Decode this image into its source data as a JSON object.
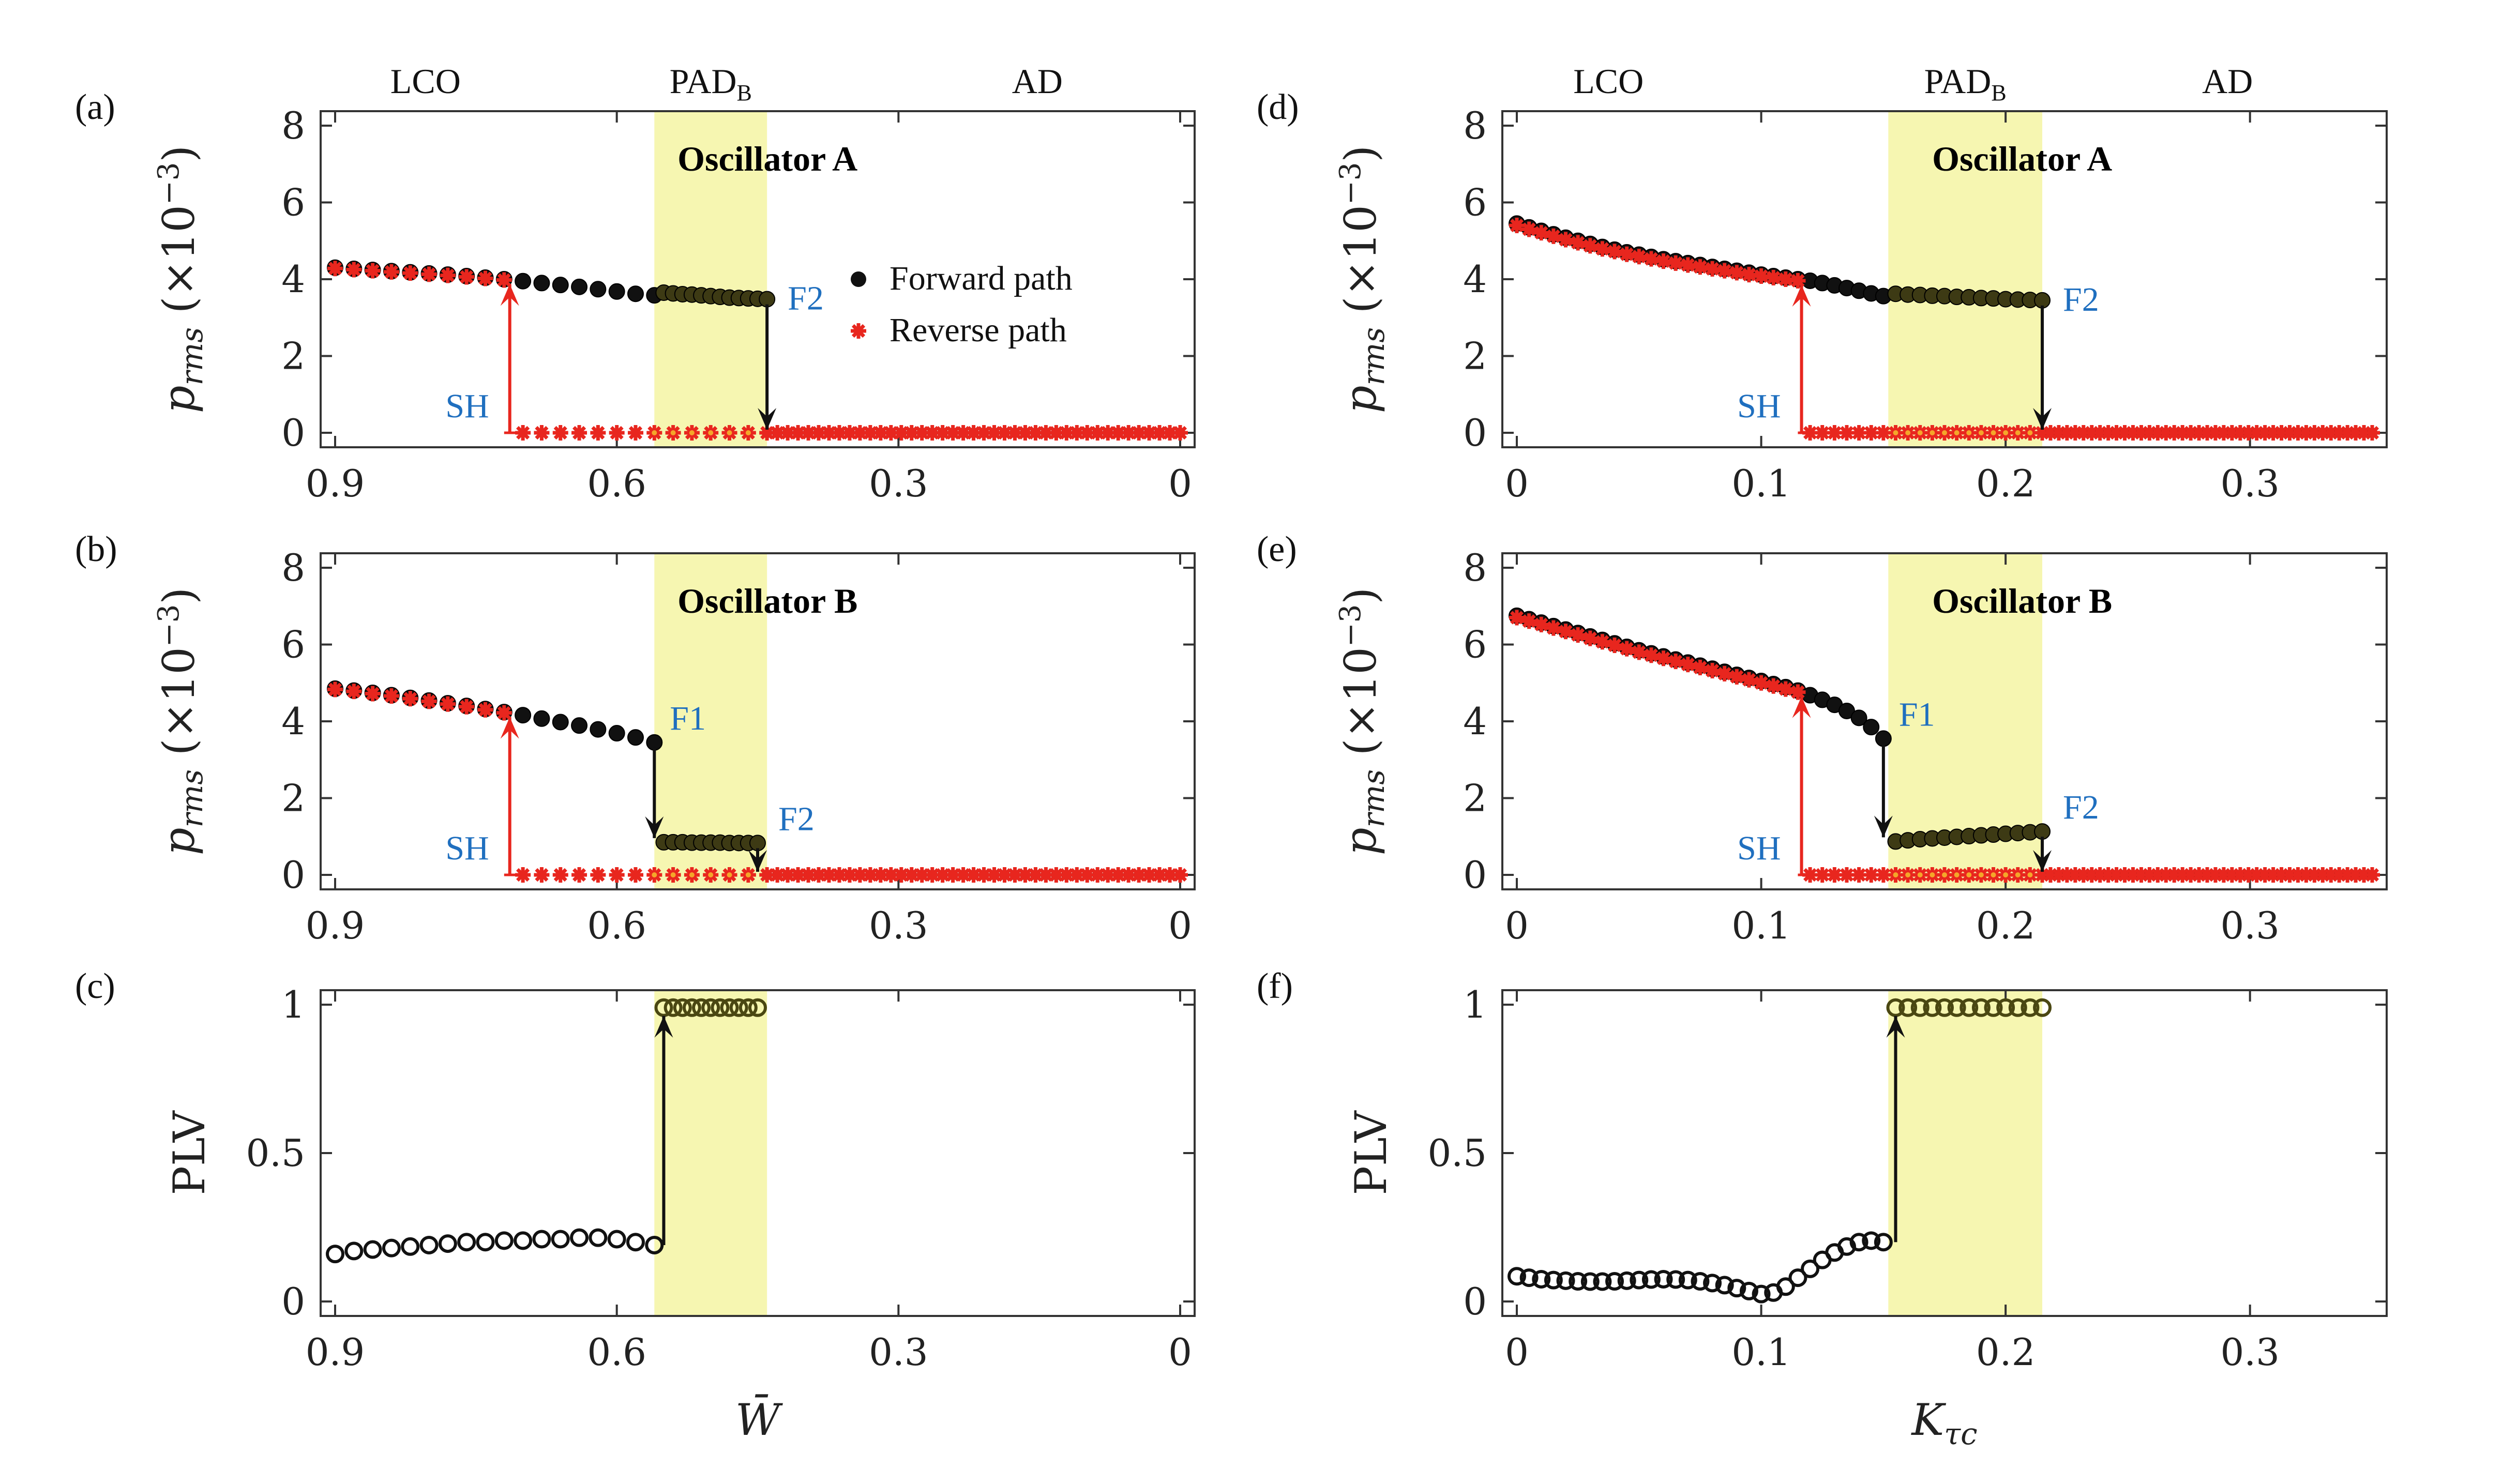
{
  "chart_data": [
    {
      "id": "a",
      "panel_label": "(a)",
      "type": "scatter",
      "title": "Oscillator A",
      "ylabel_main": "p",
      "ylabel_sub": "rms",
      "ylabel_unit": "(×10",
      "ylabel_exp": "−3",
      "ylabel_close": ")",
      "xlim": [
        0.9,
        0
      ],
      "ylim": [
        0,
        8
      ],
      "xticks": [
        "0.9",
        "0.6",
        "0.3",
        "0"
      ],
      "yticks": [
        "0",
        "2",
        "4",
        "6",
        "8"
      ],
      "regions": [
        "LCO",
        "PAD",
        "AD"
      ],
      "region_sub": "B",
      "shaded_band": [
        0.56,
        0.44
      ],
      "series": [
        {
          "name": "Forward path",
          "marker": "dot",
          "x": [
            0.9,
            0.88,
            0.86,
            0.84,
            0.82,
            0.8,
            0.78,
            0.76,
            0.74,
            0.72,
            0.7,
            0.68,
            0.66,
            0.64,
            0.62,
            0.6,
            0.58,
            0.56,
            0.55,
            0.54,
            0.53,
            0.52,
            0.51,
            0.5,
            0.49,
            0.48,
            0.47,
            0.46,
            0.45,
            0.44
          ],
          "y": [
            4.3,
            4.27,
            4.24,
            4.21,
            4.18,
            4.15,
            4.12,
            4.08,
            4.04,
            4.0,
            3.95,
            3.9,
            3.85,
            3.8,
            3.74,
            3.68,
            3.62,
            3.58,
            3.65,
            3.63,
            3.61,
            3.6,
            3.58,
            3.56,
            3.54,
            3.52,
            3.51,
            3.5,
            3.49,
            3.48
          ]
        },
        {
          "name": "Reverse path",
          "marker": "star",
          "x": [
            0.9,
            0.88,
            0.86,
            0.84,
            0.82,
            0.8,
            0.78,
            0.76,
            0.74,
            0.72,
            0.7,
            0.68,
            0.66,
            0.64,
            0.62,
            0.6,
            0.58,
            0.56,
            0.54,
            0.52,
            0.5,
            0.48,
            0.46
          ],
          "y": [
            4.28,
            4.25,
            4.22,
            4.19,
            4.16,
            4.13,
            4.1,
            4.06,
            4.02,
            3.98,
            0,
            0,
            0,
            0,
            0,
            0,
            0,
            0,
            0,
            0,
            0,
            0,
            0
          ]
        }
      ],
      "baseline_x": [
        0.44,
        0
      ],
      "annotations": [
        "SH",
        "F2"
      ],
      "legend": [
        "Forward path",
        "Reverse path"
      ]
    },
    {
      "id": "b",
      "panel_label": "(b)",
      "type": "scatter",
      "title": "Oscillator B",
      "ylabel_main": "p",
      "ylabel_sub": "rms",
      "ylabel_unit": "(×10",
      "ylabel_exp": "−3",
      "ylabel_close": ")",
      "xlim": [
        0.9,
        0
      ],
      "ylim": [
        0,
        8
      ],
      "xticks": [
        "0.9",
        "0.6",
        "0.3",
        "0"
      ],
      "yticks": [
        "0",
        "2",
        "4",
        "6",
        "8"
      ],
      "shaded_band": [
        0.56,
        0.44
      ],
      "series": [
        {
          "name": "Forward path",
          "marker": "dot",
          "x": [
            0.9,
            0.88,
            0.86,
            0.84,
            0.82,
            0.8,
            0.78,
            0.76,
            0.74,
            0.72,
            0.7,
            0.68,
            0.66,
            0.64,
            0.62,
            0.6,
            0.58,
            0.56,
            0.55,
            0.54,
            0.53,
            0.52,
            0.51,
            0.5,
            0.49,
            0.48,
            0.47,
            0.46,
            0.45
          ],
          "y": [
            4.85,
            4.8,
            4.74,
            4.68,
            4.61,
            4.54,
            4.47,
            4.4,
            4.32,
            4.24,
            4.16,
            4.07,
            3.98,
            3.89,
            3.79,
            3.69,
            3.58,
            3.45,
            0.85,
            0.85,
            0.85,
            0.84,
            0.84,
            0.84,
            0.84,
            0.83,
            0.83,
            0.83,
            0.83
          ]
        },
        {
          "name": "Reverse path",
          "marker": "star",
          "x": [
            0.9,
            0.88,
            0.86,
            0.84,
            0.82,
            0.8,
            0.78,
            0.76,
            0.74,
            0.72,
            0.7,
            0.68,
            0.66,
            0.64,
            0.62,
            0.6,
            0.58,
            0.56,
            0.54,
            0.52,
            0.5,
            0.48,
            0.46
          ],
          "y": [
            4.83,
            4.78,
            4.72,
            4.66,
            4.59,
            4.52,
            4.45,
            4.38,
            4.3,
            4.22,
            0,
            0,
            0,
            0,
            0,
            0,
            0,
            0,
            0,
            0,
            0,
            0,
            0
          ]
        }
      ],
      "baseline_x": [
        0.44,
        0
      ],
      "annotations": [
        "SH",
        "F1",
        "F2"
      ]
    },
    {
      "id": "c",
      "panel_label": "(c)",
      "type": "scatter",
      "ylabel": "PLV",
      "xlabel": "W̄",
      "xlim": [
        0.9,
        0
      ],
      "ylim": [
        0,
        1
      ],
      "xticks": [
        "0.9",
        "0.6",
        "0.3",
        "0"
      ],
      "yticks": [
        "0",
        "0.5",
        "1"
      ],
      "shaded_band": [
        0.56,
        0.44
      ],
      "series": [
        {
          "name": "PLV",
          "marker": "circle",
          "x": [
            0.9,
            0.88,
            0.86,
            0.84,
            0.82,
            0.8,
            0.78,
            0.76,
            0.74,
            0.72,
            0.7,
            0.68,
            0.66,
            0.64,
            0.62,
            0.6,
            0.58,
            0.56,
            0.55,
            0.54,
            0.53,
            0.52,
            0.51,
            0.5,
            0.49,
            0.48,
            0.47,
            0.46,
            0.45
          ],
          "y": [
            0.16,
            0.17,
            0.175,
            0.18,
            0.185,
            0.19,
            0.195,
            0.2,
            0.2,
            0.205,
            0.205,
            0.21,
            0.21,
            0.215,
            0.215,
            0.21,
            0.2,
            0.19,
            0.99,
            0.99,
            0.99,
            0.99,
            0.99,
            0.99,
            0.99,
            0.99,
            0.99,
            0.99,
            0.99
          ]
        }
      ]
    },
    {
      "id": "d",
      "panel_label": "(d)",
      "type": "scatter",
      "title": "Oscillator A",
      "ylabel_main": "p",
      "ylabel_sub": "rms",
      "ylabel_unit": "(×10",
      "ylabel_exp": "−3",
      "ylabel_close": ")",
      "xlim": [
        0,
        0.35
      ],
      "ylim": [
        0,
        8
      ],
      "xticks": [
        "0",
        "0.1",
        "0.2",
        "0.3"
      ],
      "yticks": [
        "0",
        "2",
        "4",
        "6",
        "8"
      ],
      "regions": [
        "LCO",
        "PAD",
        "AD"
      ],
      "region_sub": "B",
      "shaded_band": [
        0.152,
        0.215
      ],
      "series": [
        {
          "name": "Forward path",
          "marker": "dot",
          "x": [
            0,
            0.005,
            0.01,
            0.015,
            0.02,
            0.025,
            0.03,
            0.035,
            0.04,
            0.045,
            0.05,
            0.055,
            0.06,
            0.065,
            0.07,
            0.075,
            0.08,
            0.085,
            0.09,
            0.095,
            0.1,
            0.105,
            0.11,
            0.115,
            0.12,
            0.125,
            0.13,
            0.135,
            0.14,
            0.145,
            0.15,
            0.155,
            0.16,
            0.165,
            0.17,
            0.175,
            0.18,
            0.185,
            0.19,
            0.195,
            0.2,
            0.205,
            0.21,
            0.215
          ],
          "y": [
            5.45,
            5.35,
            5.26,
            5.17,
            5.08,
            5.0,
            4.92,
            4.84,
            4.77,
            4.7,
            4.64,
            4.58,
            4.52,
            4.47,
            4.42,
            4.37,
            4.32,
            4.27,
            4.22,
            4.17,
            4.12,
            4.08,
            4.04,
            4.0,
            3.96,
            3.9,
            3.84,
            3.77,
            3.7,
            3.63,
            3.56,
            3.62,
            3.6,
            3.59,
            3.57,
            3.56,
            3.54,
            3.53,
            3.51,
            3.5,
            3.48,
            3.47,
            3.46,
            3.45
          ]
        },
        {
          "name": "Reverse path",
          "marker": "star",
          "x": [
            0,
            0.005,
            0.01,
            0.015,
            0.02,
            0.025,
            0.03,
            0.035,
            0.04,
            0.045,
            0.05,
            0.055,
            0.06,
            0.065,
            0.07,
            0.075,
            0.08,
            0.085,
            0.09,
            0.095,
            0.1,
            0.105,
            0.11,
            0.115,
            0.12,
            0.125,
            0.13,
            0.135,
            0.14,
            0.145,
            0.15,
            0.155,
            0.16,
            0.165,
            0.17,
            0.175,
            0.18,
            0.185,
            0.19,
            0.195,
            0.2,
            0.205,
            0.21
          ],
          "y": [
            5.4,
            5.3,
            5.21,
            5.12,
            5.03,
            4.95,
            4.87,
            4.79,
            4.72,
            4.65,
            4.59,
            4.53,
            4.47,
            4.42,
            4.37,
            4.32,
            4.27,
            4.22,
            4.17,
            4.12,
            4.08,
            4.04,
            4.0,
            3.96,
            0,
            0,
            0,
            0,
            0,
            0,
            0,
            0,
            0,
            0,
            0,
            0,
            0,
            0,
            0,
            0,
            0,
            0,
            0
          ]
        }
      ],
      "baseline_x": [
        0.215,
        0.35
      ],
      "annotations": [
        "SH",
        "F2"
      ]
    },
    {
      "id": "e",
      "panel_label": "(e)",
      "type": "scatter",
      "title": "Oscillator B",
      "ylabel_main": "p",
      "ylabel_sub": "rms",
      "ylabel_unit": "(×10",
      "ylabel_exp": "−3",
      "ylabel_close": ")",
      "xlim": [
        0,
        0.35
      ],
      "ylim": [
        0,
        8
      ],
      "xticks": [
        "0",
        "0.1",
        "0.2",
        "0.3"
      ],
      "yticks": [
        "0",
        "2",
        "4",
        "6",
        "8"
      ],
      "shaded_band": [
        0.152,
        0.215
      ],
      "series": [
        {
          "name": "Forward path",
          "marker": "dot",
          "x": [
            0,
            0.005,
            0.01,
            0.015,
            0.02,
            0.025,
            0.03,
            0.035,
            0.04,
            0.045,
            0.05,
            0.055,
            0.06,
            0.065,
            0.07,
            0.075,
            0.08,
            0.085,
            0.09,
            0.095,
            0.1,
            0.105,
            0.11,
            0.115,
            0.12,
            0.125,
            0.13,
            0.135,
            0.14,
            0.145,
            0.15,
            0.155,
            0.16,
            0.165,
            0.17,
            0.175,
            0.18,
            0.185,
            0.19,
            0.195,
            0.2,
            0.205,
            0.21,
            0.215
          ],
          "y": [
            6.75,
            6.66,
            6.57,
            6.48,
            6.39,
            6.3,
            6.21,
            6.12,
            6.03,
            5.94,
            5.85,
            5.77,
            5.69,
            5.61,
            5.53,
            5.45,
            5.37,
            5.29,
            5.21,
            5.13,
            5.05,
            4.97,
            4.89,
            4.8,
            4.68,
            4.56,
            4.43,
            4.27,
            4.09,
            3.85,
            3.55,
            0.87,
            0.9,
            0.93,
            0.95,
            0.97,
            0.99,
            1.01,
            1.03,
            1.05,
            1.07,
            1.09,
            1.11,
            1.13
          ]
        },
        {
          "name": "Reverse path",
          "marker": "star",
          "x": [
            0,
            0.005,
            0.01,
            0.015,
            0.02,
            0.025,
            0.03,
            0.035,
            0.04,
            0.045,
            0.05,
            0.055,
            0.06,
            0.065,
            0.07,
            0.075,
            0.08,
            0.085,
            0.09,
            0.095,
            0.1,
            0.105,
            0.11,
            0.115,
            0.12,
            0.125,
            0.13,
            0.135,
            0.14,
            0.145,
            0.15,
            0.155,
            0.16,
            0.165,
            0.17,
            0.175,
            0.18,
            0.185,
            0.19,
            0.195,
            0.2,
            0.205,
            0.21
          ],
          "y": [
            6.7,
            6.61,
            6.52,
            6.43,
            6.34,
            6.25,
            6.16,
            6.07,
            5.98,
            5.89,
            5.8,
            5.72,
            5.64,
            5.56,
            5.48,
            5.4,
            5.32,
            5.24,
            5.16,
            5.08,
            5.0,
            4.92,
            4.84,
            4.76,
            0,
            0,
            0,
            0,
            0,
            0,
            0,
            0,
            0,
            0,
            0,
            0,
            0,
            0,
            0,
            0,
            0,
            0,
            0
          ]
        }
      ],
      "baseline_x": [
        0.215,
        0.35
      ],
      "annotations": [
        "SH",
        "F1",
        "F2"
      ]
    },
    {
      "id": "f",
      "panel_label": "(f)",
      "type": "scatter",
      "ylabel": "PLV",
      "xlabel_main": "K",
      "xlabel_sub": "τc",
      "xlim": [
        0,
        0.35
      ],
      "ylim": [
        0,
        1
      ],
      "xticks": [
        "0",
        "0.1",
        "0.2",
        "0.3"
      ],
      "yticks": [
        "0",
        "0.5",
        "1"
      ],
      "shaded_band": [
        0.152,
        0.215
      ],
      "series": [
        {
          "name": "PLV",
          "marker": "circle",
          "x": [
            0,
            0.005,
            0.01,
            0.015,
            0.02,
            0.025,
            0.03,
            0.035,
            0.04,
            0.045,
            0.05,
            0.055,
            0.06,
            0.065,
            0.07,
            0.075,
            0.08,
            0.085,
            0.09,
            0.095,
            0.1,
            0.105,
            0.11,
            0.115,
            0.12,
            0.125,
            0.13,
            0.135,
            0.14,
            0.145,
            0.15,
            0.155,
            0.16,
            0.165,
            0.17,
            0.175,
            0.18,
            0.185,
            0.19,
            0.195,
            0.2,
            0.205,
            0.21,
            0.215
          ],
          "y": [
            0.085,
            0.08,
            0.075,
            0.072,
            0.07,
            0.068,
            0.067,
            0.067,
            0.068,
            0.07,
            0.072,
            0.074,
            0.075,
            0.074,
            0.072,
            0.068,
            0.062,
            0.055,
            0.045,
            0.035,
            0.025,
            0.03,
            0.05,
            0.08,
            0.11,
            0.14,
            0.165,
            0.185,
            0.2,
            0.205,
            0.2,
            0.99,
            0.99,
            0.99,
            0.99,
            0.99,
            0.99,
            0.99,
            0.99,
            0.99,
            0.99,
            0.99,
            0.99,
            0.99
          ]
        }
      ]
    }
  ]
}
